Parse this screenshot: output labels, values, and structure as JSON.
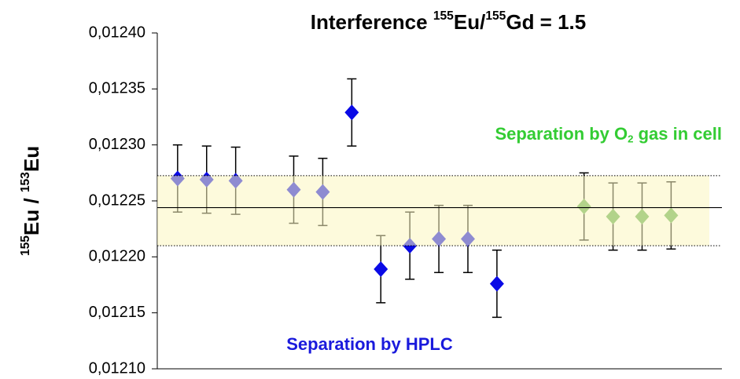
{
  "chart_data": {
    "type": "scatter",
    "title": [
      {
        "text": "Interference "
      },
      {
        "text": "155",
        "sup": true
      },
      {
        "text": "Eu/"
      },
      {
        "text": "155",
        "sup": true
      },
      {
        "text": "Gd = 1.5"
      }
    ],
    "ylabel": [
      {
        "text": "155",
        "sup": true
      },
      {
        "text": "Eu / "
      },
      {
        "text": "153",
        "sup": true
      },
      {
        "text": "Eu"
      }
    ],
    "xlim": [
      0.3,
      19.75
    ],
    "ylim": [
      0.0121,
      0.0124
    ],
    "yticks": [
      {
        "value": 0.0121,
        "label": "0,01210"
      },
      {
        "value": 0.01215,
        "label": "0,01215"
      },
      {
        "value": 0.0122,
        "label": "0,01220"
      },
      {
        "value": 0.01225,
        "label": "0,01225"
      },
      {
        "value": 0.0123,
        "label": "0,01230"
      },
      {
        "value": 0.01235,
        "label": "0,01235"
      },
      {
        "value": 0.0124,
        "label": "0,01240"
      }
    ],
    "mean": 0.012244,
    "band": [
      0.01221,
      0.0122725
    ],
    "band_color": "#fbf5c0",
    "series": [
      {
        "name": [
          {
            "text": "Separation by HPLC"
          }
        ],
        "color": "#0a0ae6",
        "label_color": "#1a1adc",
        "x": [
          1,
          2,
          3,
          5,
          6,
          7,
          8,
          9,
          10,
          11,
          12
        ],
        "values": [
          0.01227,
          0.012269,
          0.012268,
          0.01226,
          0.012258,
          0.012329,
          0.012189,
          0.01221,
          0.012216,
          0.012216,
          0.012176
        ],
        "errors": [
          3e-05,
          3e-05,
          3e-05,
          3e-05,
          3e-05,
          3e-05,
          3e-05,
          3e-05,
          3e-05,
          3e-05,
          3e-05
        ]
      },
      {
        "name": [
          {
            "text": "Separation by O"
          },
          {
            "text": "2",
            "sub": true
          },
          {
            "text": " gas in cell"
          }
        ],
        "color": "#5aa84a",
        "label_color": "#33cc33",
        "x": [
          15,
          16,
          17,
          18
        ],
        "values": [
          0.012245,
          0.012236,
          0.012236,
          0.012237
        ],
        "errors": [
          3e-05,
          3e-05,
          3e-05,
          3e-05
        ]
      }
    ]
  }
}
